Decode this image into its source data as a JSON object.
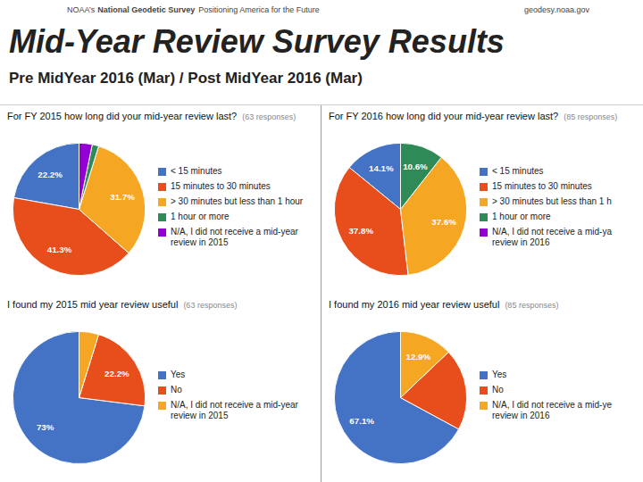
{
  "title": "Mid-Year Review Survey Results",
  "subtitle": "Pre MidYear  2016 (Mar) / Post MidYear 2016 (Mar)",
  "annotations": [
    "NOAA’s",
    "National Geodetic Survey",
    "Positioning America for the Future",
    "geodesy.noaa.gov"
  ],
  "chart_data": [
    {
      "type": "pie",
      "title": "For FY 2015 how long did your mid-year review last?",
      "subtitle": "(63 responses)",
      "categories": [
        "< 15 minutes",
        "15 minutes to 30 minutes",
        "> 30 minutes but less than 1 hour",
        "1 hour or more",
        "N/A, I did not receive a mid-year\nreview in 2015"
      ],
      "values": [
        22.2,
        41.3,
        31.7,
        1.6,
        3.2
      ],
      "value_labels": [
        "22.2%",
        "41.3%",
        "31.7%",
        null,
        null
      ],
      "colors": [
        "#4472c4",
        "#e84d1c",
        "#f5a623",
        "#2e8b57",
        "#9400d3"
      ],
      "data_labels": true,
      "legend": "right"
    },
    {
      "type": "pie",
      "title": "For FY 2016 how long did your mid-year review last?",
      "subtitle": "(85 responses)",
      "categories": [
        "< 15 minutes",
        "15 minutes to 30 minutes",
        "> 30 minutes but less than 1 h",
        "1 hour or more",
        "N/A, I did not receive a mid-ya\nreview in 2016"
      ],
      "values": [
        14.1,
        37.8,
        37.6,
        10.6,
        0.0
      ],
      "value_labels": [
        "14.1%",
        "37.8%",
        "37.6%",
        "10.6%",
        null
      ],
      "colors": [
        "#4472c4",
        "#e84d1c",
        "#f5a623",
        "#2e8b57",
        "#9400d3"
      ],
      "data_labels": true,
      "legend": "right"
    },
    {
      "type": "pie",
      "title": "I found my 2015 mid year review useful",
      "subtitle": "(63 responses)",
      "categories": [
        "Yes",
        "No",
        "N/A, I did not receive a mid-year\nreview in 2015"
      ],
      "values": [
        73.0,
        22.2,
        4.8
      ],
      "value_labels": [
        "73%",
        "22.2%",
        null
      ],
      "colors": [
        "#4472c4",
        "#e84d1c",
        "#f5a623"
      ],
      "data_labels": true,
      "legend": "right"
    },
    {
      "type": "pie",
      "title": "I found my 2016 mid year review useful",
      "subtitle": "(85 responses)",
      "categories": [
        "Yes",
        "No",
        "N/A, I did not receive a mid-ye\nreview in 2016"
      ],
      "values": [
        67.1,
        20.0,
        12.9
      ],
      "value_labels": [
        "67.1%",
        null,
        "12.9%"
      ],
      "colors": [
        "#4472c4",
        "#e84d1c",
        "#f5a623"
      ],
      "data_labels": true,
      "legend": "right"
    }
  ]
}
